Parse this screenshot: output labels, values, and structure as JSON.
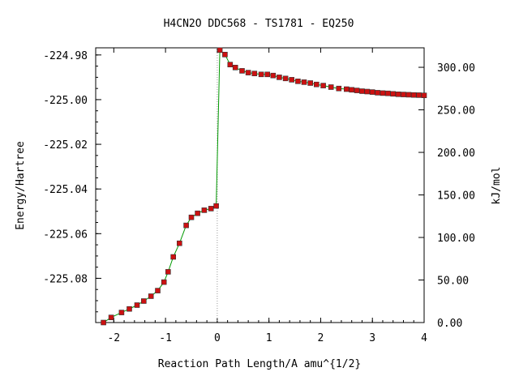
{
  "chart_data": {
    "type": "line",
    "title": "H4CN2O   DDC568 - TS1781 - EQ250",
    "xlabel": "Reaction Path Length/A amu^{1/2}",
    "ylabel": "Energy/Hartree",
    "y2label": "kJ/mol",
    "xlim": [
      -2.35,
      4.0
    ],
    "ylim": [
      -225.0998,
      -224.9768
    ],
    "y2lim": [
      0.0,
      322.9
    ],
    "x_ticks": [
      -2,
      -1,
      0,
      1,
      2,
      3,
      4
    ],
    "x_tick_labels": [
      "-2",
      "-1",
      "0",
      "1",
      "2",
      "3",
      "4"
    ],
    "y_ticks": [
      -224.98,
      -225.0,
      -225.02,
      -225.04,
      -225.06,
      -225.08
    ],
    "y_tick_labels": [
      "-224.98",
      "-225.00",
      "-225.02",
      "-225.04",
      "-225.06",
      "-225.08"
    ],
    "y2_ticks": [
      300,
      250,
      200,
      150,
      100,
      50,
      0
    ],
    "y2_tick_labels": [
      "300.00",
      "250.00",
      "200.00",
      "150.00",
      "100.00",
      "50.00",
      "0.00"
    ],
    "grid": false,
    "ts_marker_x": 0,
    "colors": {
      "curve": "#009900",
      "points": "#cc1111",
      "ts_marker": "#999999"
    },
    "series": [
      {
        "x": [
          -2.2,
          -2.05,
          -1.85,
          -1.7,
          -1.55,
          -1.42,
          -1.28,
          -1.15,
          -1.03,
          -0.95,
          -0.85,
          -0.73,
          -0.6,
          -0.5,
          -0.38,
          -0.25,
          -0.12,
          -0.02,
          0.05,
          0.15,
          0.25,
          0.35,
          0.48,
          0.6,
          0.72,
          0.85,
          0.97,
          1.08,
          1.2,
          1.32,
          1.44,
          1.56,
          1.68,
          1.8,
          1.92,
          2.05,
          2.2,
          2.35,
          2.5,
          2.6,
          2.7,
          2.8,
          2.9,
          3.0,
          3.1,
          3.2,
          3.3,
          3.4,
          3.5,
          3.6,
          3.7,
          3.8,
          3.9,
          4.0
        ],
        "values": [
          -225.0998,
          -225.0975,
          -225.0953,
          -225.0937,
          -225.092,
          -225.0902,
          -225.088,
          -225.0855,
          -225.0817,
          -225.0771,
          -225.0704,
          -225.0643,
          -225.0563,
          -225.0527,
          -225.0509,
          -225.0495,
          -225.0488,
          -225.0476,
          -224.9778,
          -224.9798,
          -224.9843,
          -224.9856,
          -224.9871,
          -224.9879,
          -224.9883,
          -224.9887,
          -224.9887,
          -224.9892,
          -224.99,
          -224.9905,
          -224.9911,
          -224.9918,
          -224.9922,
          -224.9926,
          -224.9932,
          -224.9937,
          -224.9944,
          -224.995,
          -224.9953,
          -224.9956,
          -224.9959,
          -224.9962,
          -224.9964,
          -224.9966,
          -224.9969,
          -224.9971,
          -224.9972,
          -224.9974,
          -224.9976,
          -224.9977,
          -224.9978,
          -224.9979,
          -224.998,
          -224.9981
        ]
      }
    ]
  }
}
